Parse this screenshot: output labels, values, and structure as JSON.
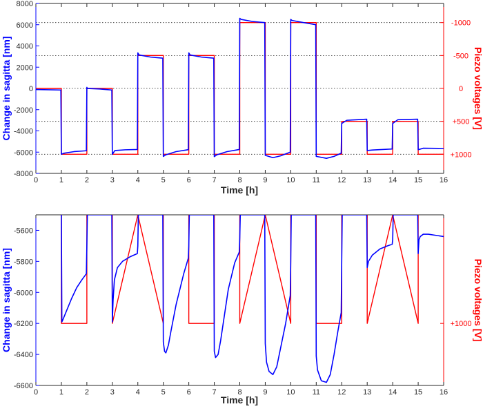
{
  "colors": {
    "sagitta": "#0000ff",
    "piezo": "#ff0000",
    "axis": "#262626",
    "grid": "#262626"
  },
  "chart_data": [
    {
      "type": "line",
      "xlabel": "Time [h]",
      "ylabel": "Change in sagitta [nm]",
      "y2label": "Piezo voltages [V]",
      "xlim": [
        0,
        16
      ],
      "ylim": [
        -8000,
        8000
      ],
      "xticks": [
        0,
        1,
        2,
        3,
        4,
        5,
        6,
        7,
        8,
        9,
        10,
        11,
        12,
        13,
        14,
        15,
        16
      ],
      "yticks": [
        -8000,
        -6000,
        -4000,
        -2000,
        0,
        2000,
        4000,
        6000,
        8000
      ],
      "y2ticks": [
        {
          "label": "-1000",
          "y": 6200
        },
        {
          "label": "-500",
          "y": 3100
        },
        {
          "label": "0",
          "y": 0
        },
        {
          "label": "+500",
          "y": -3100
        },
        {
          "label": "+1000",
          "y": -6200
        }
      ],
      "grid": "dotted horizontal lines at right-axis ticks",
      "series": [
        {
          "role": "sagitta",
          "x": [
            0,
            0.98,
            1,
            1.1,
            1.5,
            1.98,
            2,
            2.02,
            2.5,
            2.98,
            3,
            3.1,
            3.5,
            3.98,
            4,
            4.05,
            4.5,
            4.98,
            5,
            5.1,
            5.5,
            5.98,
            6,
            6.05,
            6.5,
            6.98,
            7,
            7.1,
            7.5,
            7.98,
            8,
            8.05,
            8.5,
            8.98,
            9,
            9.3,
            9.6,
            9.98,
            10,
            10.05,
            10.5,
            10.98,
            11,
            11.4,
            11.7,
            11.98,
            12,
            12.2,
            12.98,
            13,
            13.2,
            13.98,
            14,
            14.2,
            14.98,
            15,
            15.2,
            16
          ],
          "y": [
            -100,
            -150,
            -6200,
            -6100,
            -5950,
            -5870,
            100,
            0,
            -50,
            -150,
            -6200,
            -5850,
            -5780,
            -5750,
            3350,
            3150,
            2950,
            2850,
            -6400,
            -6250,
            -5950,
            -5770,
            3350,
            3150,
            2950,
            2850,
            -6420,
            -6250,
            -5950,
            -5750,
            6600,
            6500,
            6300,
            6200,
            -6300,
            -6520,
            -6350,
            -6000,
            6500,
            6400,
            6200,
            6000,
            -6400,
            -6580,
            -6400,
            -6100,
            -3300,
            -3000,
            -2900,
            -5850,
            -5800,
            -5700,
            -3300,
            -2950,
            -2900,
            -5770,
            -5630,
            -5650
          ]
        },
        {
          "role": "piezo",
          "x": [
            0,
            1,
            1,
            2,
            2,
            3,
            3,
            4,
            4,
            5,
            5,
            6,
            6,
            7,
            7,
            8,
            8,
            9,
            9,
            10,
            10,
            11,
            11,
            12,
            12,
            13,
            13,
            14,
            14,
            15,
            15,
            16
          ],
          "y": [
            0,
            0,
            -6200,
            -6200,
            0,
            0,
            -6200,
            -6200,
            3100,
            3100,
            -6200,
            -6200,
            3100,
            3100,
            -6200,
            -6200,
            6200,
            6200,
            -6200,
            -6200,
            6200,
            6200,
            -6200,
            -6200,
            -3100,
            -3100,
            -6200,
            -6200,
            -3100,
            -3100,
            -6200,
            -6200
          ]
        }
      ]
    },
    {
      "type": "line",
      "xlabel": "Time [h]",
      "ylabel": "Change in sagitta [nm]",
      "y2label": "Piezo voltages [V]",
      "xlim": [
        0,
        16
      ],
      "ylim": [
        -6600,
        -5500
      ],
      "xticks": [
        0,
        1,
        2,
        3,
        4,
        5,
        6,
        7,
        8,
        9,
        10,
        11,
        12,
        13,
        14,
        15,
        16
      ],
      "yticks": [
        -6600,
        -6400,
        -6200,
        -6000,
        -5800,
        -5600
      ],
      "y2ticks": [
        {
          "label": "+1000",
          "y": -6200
        }
      ],
      "series": [
        {
          "role": "sagitta",
          "x": [
            1,
            1.02,
            1.05,
            1.2,
            1.4,
            1.6,
            1.8,
            1.98,
            2,
            2.02,
            2.98,
            3,
            3.03,
            3.08,
            3.2,
            3.4,
            3.7,
            3.98,
            4,
            4.02,
            4.98,
            5,
            5.05,
            5.1,
            5.2,
            5.3,
            5.5,
            5.8,
            5.98,
            6,
            6.02,
            6.98,
            7,
            7.05,
            7.15,
            7.25,
            7.35,
            7.55,
            7.8,
            7.98,
            8,
            8.02,
            8.98,
            9,
            9.05,
            9.15,
            9.3,
            9.45,
            9.6,
            9.8,
            9.98,
            10,
            10.02,
            10.98,
            11,
            11.05,
            11.2,
            11.4,
            11.55,
            11.7,
            11.85,
            11.98,
            12,
            12.02,
            12.98,
            13,
            13.05,
            13.2,
            13.5,
            13.8,
            13.98,
            14,
            14.02,
            14.98,
            15,
            15.03,
            15.08,
            15.2,
            15.4,
            16
          ],
          "y": [
            -5500,
            -6190,
            -6180,
            -6120,
            -6040,
            -5970,
            -5920,
            -5880,
            -5700,
            -5500,
            -5500,
            -6190,
            -6050,
            -5920,
            -5840,
            -5800,
            -5770,
            -5750,
            -5700,
            -5500,
            -5500,
            -6320,
            -6380,
            -6390,
            -6340,
            -6250,
            -6080,
            -5880,
            -5780,
            -5700,
            -5500,
            -5500,
            -6380,
            -6420,
            -6400,
            -6310,
            -6200,
            -5980,
            -5810,
            -5740,
            -5650,
            -5500,
            -5500,
            -6330,
            -6450,
            -6510,
            -6530,
            -6480,
            -6360,
            -6200,
            -6020,
            -5800,
            -5500,
            -5500,
            -6410,
            -6500,
            -6570,
            -6580,
            -6530,
            -6400,
            -6250,
            -6130,
            -5800,
            -5500,
            -5500,
            -5840,
            -5800,
            -5760,
            -5720,
            -5700,
            -5690,
            -5660,
            -5500,
            -5500,
            -5750,
            -5660,
            -5640,
            -5625,
            -5625,
            -5640
          ]
        },
        {
          "role": "piezo",
          "x": [
            1,
            1,
            2,
            2,
            2,
            3,
            3,
            3,
            4,
            4,
            4,
            5,
            5,
            5,
            6,
            6,
            6,
            7,
            7,
            7,
            8,
            8,
            8,
            9,
            9,
            9,
            10,
            10,
            10,
            11,
            11,
            11,
            12,
            12,
            12,
            13,
            13,
            13,
            14,
            14,
            14,
            15,
            15,
            15,
            16
          ],
          "y": [
            -5500,
            -6200,
            -6200,
            -5500,
            null,
            -5500,
            -6200,
            -6200,
            -5500,
            null,
            -5500,
            -6200,
            -6200,
            -5500,
            null,
            -5500,
            -6200,
            -6200,
            -5500,
            null,
            -5500,
            -6200,
            -6200,
            -5500,
            null,
            -5500,
            -6200,
            -6200,
            -5500,
            null,
            -5500,
            -6200,
            -6200,
            -5500,
            null,
            -5500,
            -6200,
            -6200,
            -5500,
            null,
            -5500,
            -6200,
            -6200,
            -5500,
            null
          ]
        }
      ]
    }
  ]
}
